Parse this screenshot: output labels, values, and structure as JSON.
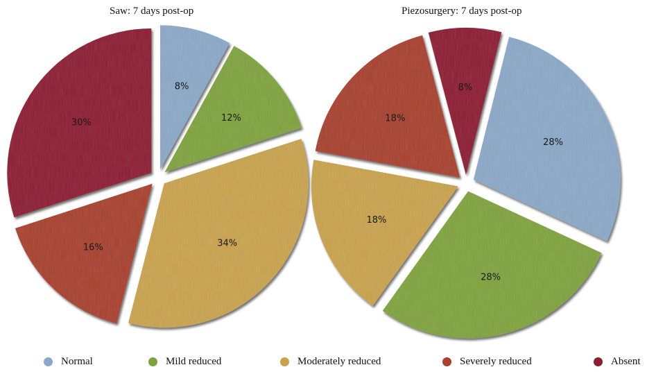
{
  "legend": [
    {
      "label": "Normal",
      "color": "#8aa8c8"
    },
    {
      "label": "Mild reduced",
      "color": "#7ea33e"
    },
    {
      "label": "Moderately reduced",
      "color": "#c9a24e"
    },
    {
      "label": "Severely reduced",
      "color": "#a8412f"
    },
    {
      "label": "Absent",
      "color": "#8c1f30"
    }
  ],
  "chart_data": [
    {
      "type": "pie",
      "title": "Saw: 7 days post-op",
      "categories": [
        "Normal",
        "Mild reduced",
        "Moderately reduced",
        "Severely reduced",
        "Absent"
      ],
      "values": [
        8,
        12,
        34,
        16,
        30
      ],
      "labels": [
        "8%",
        "12%",
        "34%",
        "16%",
        "30%"
      ],
      "colors": [
        "#8aa8c8",
        "#7ea33e",
        "#c9a24e",
        "#a8412f",
        "#8c1f30"
      ]
    },
    {
      "type": "pie",
      "title": "Piezosurgery: 7 days post-op",
      "categories": [
        "Normal",
        "Mild reduced",
        "Moderately reduced",
        "Severely reduced",
        "Absent"
      ],
      "values": [
        28,
        28,
        18,
        18,
        8
      ],
      "labels": [
        "28%",
        "28%",
        "18%",
        "18%",
        "8%"
      ],
      "colors": [
        "#8aa8c8",
        "#7ea33e",
        "#c9a24e",
        "#a8412f",
        "#8c1f30"
      ]
    }
  ]
}
